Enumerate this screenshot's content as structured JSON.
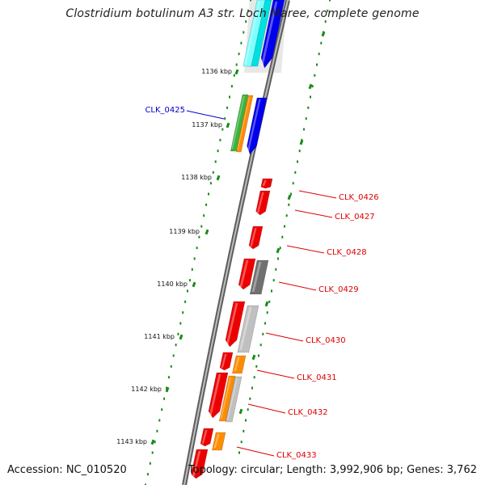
{
  "title": "Clostridium botulinum A3 str. Loch Maree, complete genome",
  "footer": {
    "accession": "Accession: NC_010520",
    "summary": "Topology: circular; Length: 3,992,906 bp; Genes: 3,762"
  },
  "colors": {
    "red": "#ee0000",
    "orange": "#ff8c00",
    "green": "#3cb43c",
    "blue": "#0000ee",
    "cyan": "#00e0e0",
    "gray": "#c0c0c0",
    "darkgray": "#606060",
    "tick": "#1a8a1a",
    "label_red": "#dd0000",
    "label_blue": "#0000cc"
  },
  "ticks": [
    {
      "label": "1136 kbp"
    },
    {
      "label": "1137 kbp"
    },
    {
      "label": "1138 kbp"
    },
    {
      "label": "1139 kbp"
    },
    {
      "label": "1140 kbp"
    },
    {
      "label": "1141 kbp"
    },
    {
      "label": "1142 kbp"
    },
    {
      "label": "1143 kbp"
    }
  ],
  "gene_labels": [
    {
      "text": "CLK_0425",
      "color_key": "label_blue"
    },
    {
      "text": "CLK_0426",
      "color_key": "label_red"
    },
    {
      "text": "CLK_0427",
      "color_key": "label_red"
    },
    {
      "text": "CLK_0428",
      "color_key": "label_red"
    },
    {
      "text": "CLK_0429",
      "color_key": "label_red"
    },
    {
      "text": "CLK_0430",
      "color_key": "label_red"
    },
    {
      "text": "CLK_0431",
      "color_key": "label_red"
    },
    {
      "text": "CLK_0432",
      "color_key": "label_red"
    },
    {
      "text": "CLK_0433",
      "color_key": "label_red"
    }
  ]
}
